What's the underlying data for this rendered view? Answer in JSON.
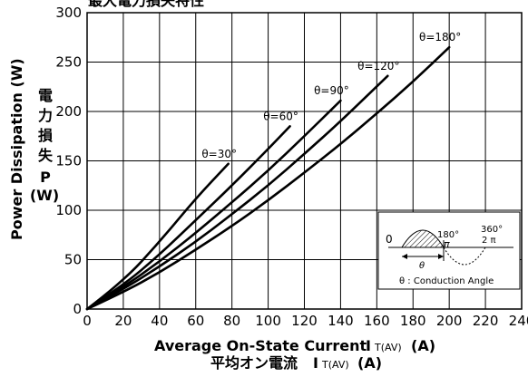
{
  "chart_data": {
    "type": "line",
    "title": "最大電力損失特性",
    "xlabel_en": "Average On-State Current",
    "xlabel_symbol": "I",
    "xlabel_subscript": "T(AV)",
    "xlabel_unit": "(A)",
    "xlabel_jp": "平均オン電流",
    "ylabel_en": "Power Dissipation (W)",
    "ylabel_jp_chars": [
      "電",
      "力",
      "損",
      "失"
    ],
    "ylabel_jp_symbol": "P",
    "ylabel_jp_unit": "(W)",
    "xlim": [
      0,
      240
    ],
    "ylim": [
      0,
      300
    ],
    "x_ticks": [
      "0",
      "20",
      "40",
      "60",
      "80",
      "100",
      "120",
      "140",
      "160",
      "180",
      "200",
      "220",
      "240"
    ],
    "y_ticks": [
      "0",
      "50",
      "100",
      "150",
      "200",
      "250",
      "300"
    ],
    "grid": true,
    "series": [
      {
        "name": "θ=30°",
        "x": [
          0,
          20,
          40,
          60,
          78
        ],
        "y": [
          0,
          28,
          68,
          112,
          147
        ]
      },
      {
        "name": "θ=60°",
        "x": [
          0,
          20,
          40,
          60,
          80,
          100,
          112
        ],
        "y": [
          0,
          24,
          55,
          90,
          125,
          162,
          185
        ]
      },
      {
        "name": "θ=90°",
        "x": [
          0,
          20,
          40,
          60,
          80,
          100,
          120,
          140
        ],
        "y": [
          0,
          22,
          48,
          77,
          108,
          140,
          175,
          211
        ]
      },
      {
        "name": "θ=120°",
        "x": [
          0,
          20,
          40,
          60,
          80,
          100,
          120,
          140,
          166
        ],
        "y": [
          0,
          20,
          43,
          68,
          96,
          125,
          157,
          190,
          236
        ]
      },
      {
        "name": "θ=180°",
        "x": [
          0,
          20,
          40,
          60,
          80,
          100,
          120,
          140,
          160,
          180,
          200
        ],
        "y": [
          0,
          17,
          37,
          60,
          84,
          110,
          138,
          167,
          198,
          230,
          265
        ]
      }
    ],
    "inset": {
      "label_zero": "0",
      "label_180deg": "180°",
      "label_pi": "π",
      "label_360deg": "360°",
      "label_2pi": "2 π",
      "label_theta": "θ",
      "caption": "θ : Conduction Angle"
    }
  }
}
